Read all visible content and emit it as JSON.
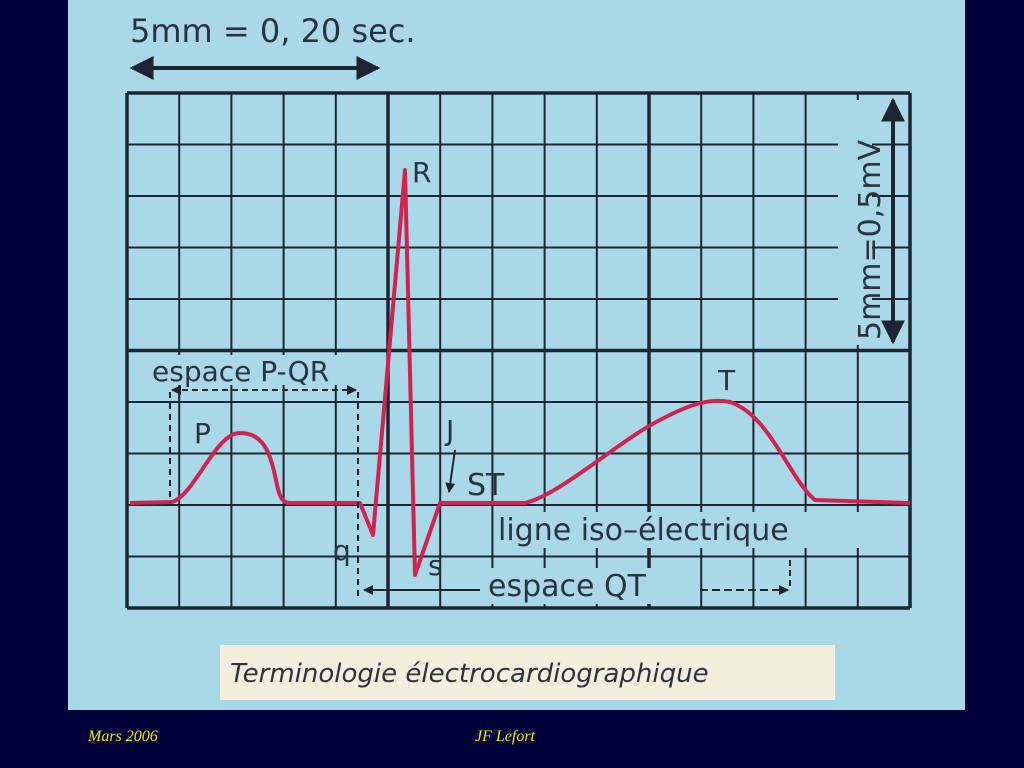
{
  "diagram": {
    "time_scale": "5mm = 0, 20 sec.",
    "voltage_scale": "5mm=0,5mV",
    "labels": {
      "R": "R",
      "T": "T",
      "P": "P",
      "J": "J",
      "ST": "ST",
      "q": "q",
      "s": "s"
    },
    "pqr_interval": "espace P-QR",
    "qt_interval": "espace QT",
    "baseline": "ligne iso–électrique",
    "caption": "Terminologie électrocardiographique"
  },
  "footer": {
    "date": "Mars 2006",
    "author": "JF Lefort"
  }
}
